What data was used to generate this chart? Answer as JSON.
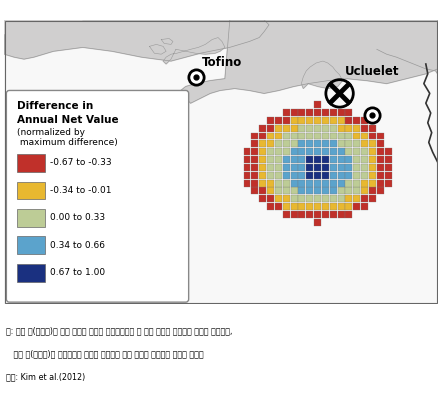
{
  "tofino_label": "Tofino",
  "ucluelet_label": "Ucluelet",
  "legend_title_line1": "Difference in",
  "legend_title_line2": "Annual Net Value",
  "legend_title_line3": "(normalized by",
  "legend_title_line4": " maximum difference)",
  "legend_entries": [
    {
      "label": "-0.67 to -0.33",
      "color": "#C0302A"
    },
    {
      "label": "-0.34 to -0.01",
      "color": "#E8B830"
    },
    {
      "label": "0.00 to 0.33",
      "color": "#BDCC96"
    },
    {
      "label": "0.34 to 0.66",
      "color": "#5BA3CC"
    },
    {
      "label": "0.67 to 1.00",
      "color": "#1A3080"
    }
  ],
  "footnote_line1": "주: 양의 값(푸른색)은 해양 에너지 단지가 어로활동보다 더 많은 이익을 창출하는 지역을 나타내고,",
  "footnote_line2": "   음의 값(붉은색)은 어업활동이 에너지 생산보다 많은 이익을 생산하는 지역을 나타냄",
  "footnote_line3": "자료: Kim et al.(2012)",
  "colors": {
    "red": "#C0302A",
    "yellow": "#E8B830",
    "green": "#BDCC96",
    "blue": "#5BA3CC",
    "navy": "#1A3080"
  }
}
